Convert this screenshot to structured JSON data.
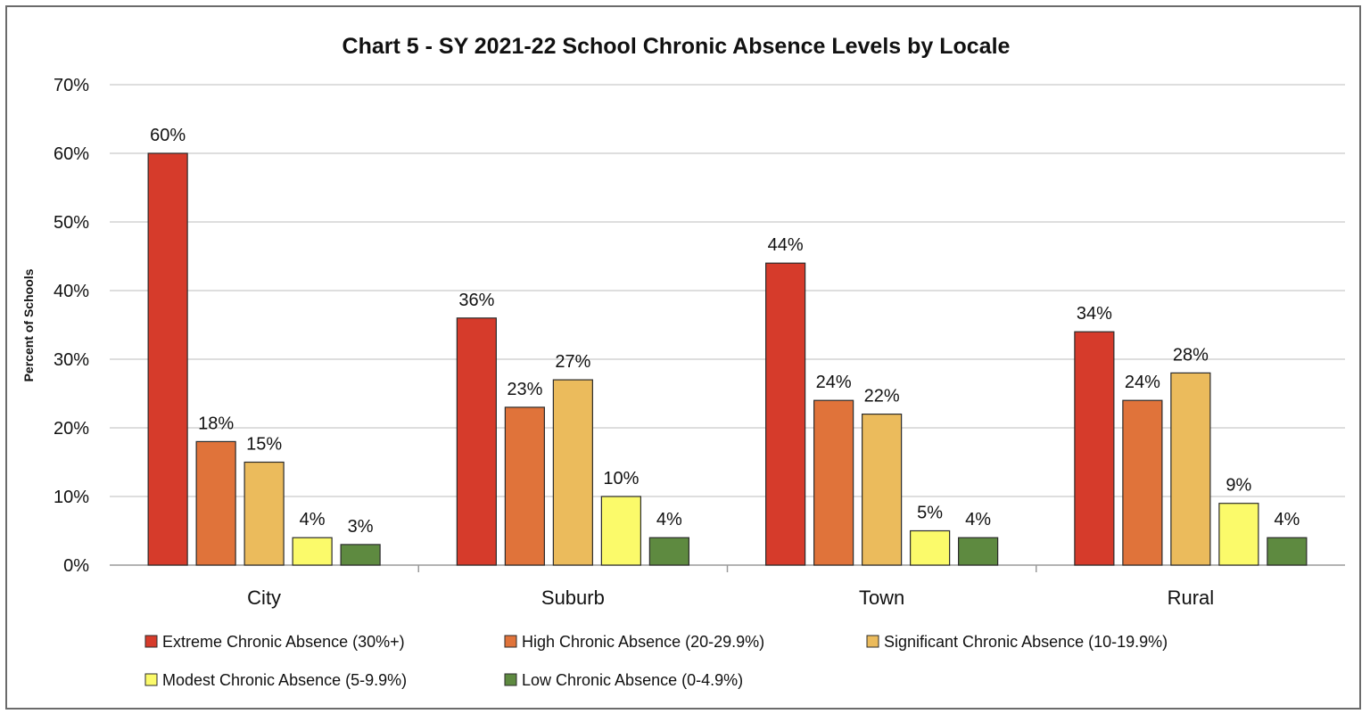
{
  "chart_data": {
    "type": "bar",
    "title": "Chart 5 - SY 2021-22 School Chronic Absence Levels by Locale",
    "ylabel": "Percent of Schools",
    "xlabel": "",
    "ylim": [
      0,
      70
    ],
    "ytick_step": 10,
    "ytick_format": "percent",
    "grid": true,
    "legend_position": "bottom",
    "categories": [
      "City",
      "Suburb",
      "Town",
      "Rural"
    ],
    "series": [
      {
        "name": "Extreme Chronic Absence (30%+)",
        "color": "#d63b2b",
        "values": [
          60,
          36,
          44,
          34
        ]
      },
      {
        "name": "High Chronic Absence (20-29.9%)",
        "color": "#e0733a",
        "values": [
          18,
          23,
          24,
          24
        ]
      },
      {
        "name": "Significant Chronic Absence (10-19.9%)",
        "color": "#ebbb5c",
        "values": [
          15,
          27,
          22,
          28
        ]
      },
      {
        "name": "Modest Chronic Absence (5-9.9%)",
        "color": "#fbfa6a",
        "values": [
          4,
          10,
          5,
          9
        ]
      },
      {
        "name": "Low Chronic Absence (0-4.9%)",
        "color": "#5e8a40",
        "values": [
          3,
          4,
          4,
          4
        ]
      }
    ],
    "data_label_suffix": "%"
  }
}
